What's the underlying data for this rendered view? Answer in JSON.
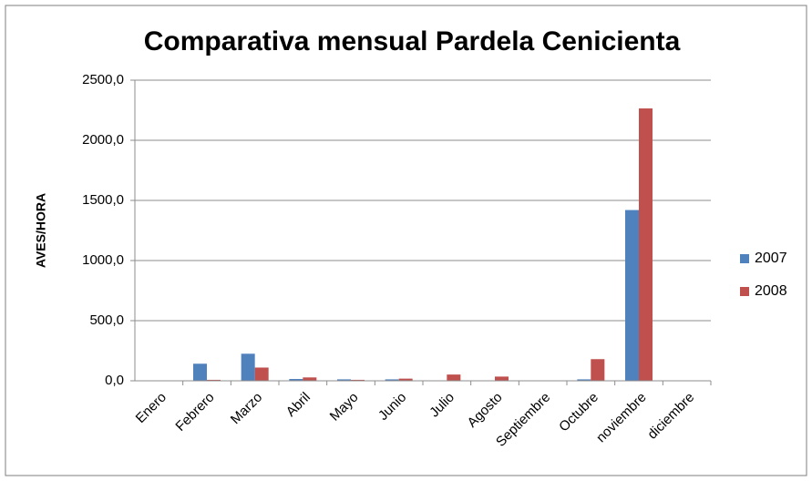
{
  "chart_data": {
    "type": "bar",
    "title": "Comparativa mensual Pardela Cenicienta",
    "y_label": "AVES/HORA",
    "categories": [
      "Enero",
      "Febrero",
      "Marzo",
      "Abril",
      "Mayo",
      "Junio",
      "Julio",
      "Agosto",
      "Septiembre",
      "Octubre",
      "noviembre",
      "diciembre"
    ],
    "series": [
      {
        "name": "2007",
        "color": "#4f81bd",
        "values": [
          0,
          142,
          225,
          15,
          12,
          12,
          0,
          0,
          0,
          12,
          1420,
          0
        ]
      },
      {
        "name": "2008",
        "color": "#c0504d",
        "values": [
          0,
          8,
          110,
          28,
          8,
          18,
          52,
          35,
          0,
          180,
          2265,
          0
        ]
      }
    ],
    "ylim": [
      0,
      2500
    ],
    "yticks": [
      {
        "value": 0,
        "label": "0,0"
      },
      {
        "value": 500,
        "label": "500,0"
      },
      {
        "value": 1000,
        "label": "1000,0"
      },
      {
        "value": 1500,
        "label": "1500,0"
      },
      {
        "value": 2000,
        "label": "2000,0"
      },
      {
        "value": 2500,
        "label": "2500,0"
      }
    ],
    "grid": true,
    "legend": "right"
  }
}
